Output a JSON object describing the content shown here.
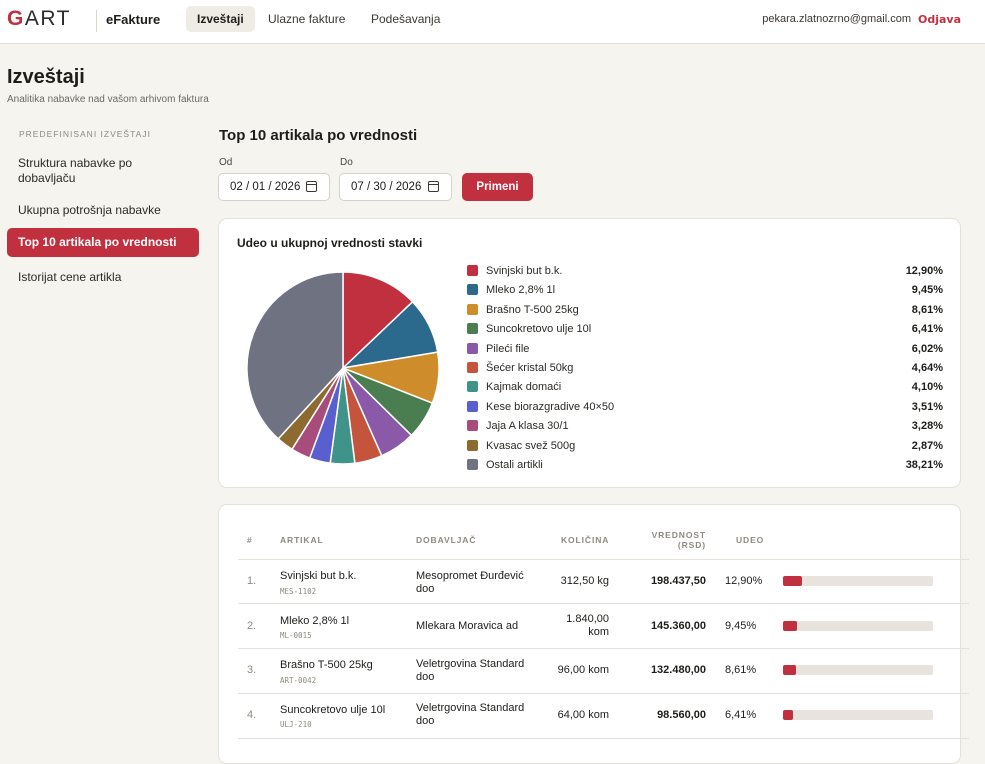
{
  "header": {
    "logo_first": "G",
    "logo_rest": "ART",
    "app_name": "eFakture",
    "nav": [
      {
        "label": "Izveštaji",
        "active": true
      },
      {
        "label": "Ulazne fakture",
        "active": false
      },
      {
        "label": "Podešavanja",
        "active": false
      }
    ],
    "user_email": "pekara.zlatnozrno@gmail.com",
    "logout_label": "Odjava"
  },
  "page": {
    "title": "Izveštaji",
    "subtitle": "Analitika nabavke nad vašom arhivom faktura"
  },
  "sidebar": {
    "heading": "PREDEFINISANI IZVEŠTAJI",
    "items": [
      {
        "label": "Struktura nabavke po dobavljaču",
        "active": false
      },
      {
        "label": "Ukupna potrošnja nabavke",
        "active": false
      },
      {
        "label": "Top 10 artikala po vrednosti",
        "active": true
      },
      {
        "label": "Istorijat cene artikla",
        "active": false
      }
    ]
  },
  "report": {
    "title": "Top 10 artikala po vrednosti",
    "from_label": "Od",
    "from_value": "02 / 01 / 2026",
    "to_label": "Do",
    "to_value": "07 / 30 / 2026",
    "apply_label": "Primeni"
  },
  "chart_card": {
    "title": "Udeo u ukupnoj vrednosti stavki"
  },
  "chart_data": {
    "type": "pie",
    "title": "Udeo u ukupnoj vrednosti stavki",
    "labels": [
      "Svinjski but b.k.",
      "Mleko 2,8% 1l",
      "Brašno T-500 25kg",
      "Suncokretovo ulje 10l",
      "Pileći file",
      "Šećer kristal 50kg",
      "Kajmak domaći",
      "Kese biorazgradive 40×50",
      "Jaja A klasa 30/1",
      "Kvasac svež 500g",
      "Ostali artikli"
    ],
    "values": [
      12.9,
      9.45,
      8.61,
      6.41,
      6.02,
      4.64,
      4.1,
      3.51,
      3.28,
      2.87,
      38.21
    ],
    "value_labels": [
      "12,90%",
      "9,45%",
      "8,61%",
      "6,41%",
      "6,02%",
      "4,64%",
      "4,10%",
      "3,51%",
      "3,28%",
      "2,87%",
      "38,21%"
    ],
    "colors": [
      "#c1303f",
      "#2b6a8c",
      "#cf8c2a",
      "#4a7d4f",
      "#8a5aa8",
      "#c4543c",
      "#3f9389",
      "#5a5fcf",
      "#a84c7c",
      "#8c6a30",
      "#6f7280"
    ],
    "legend_position": "right"
  },
  "table": {
    "headers": {
      "num": "#",
      "article": "ARTIKAL",
      "supplier": "DOBAVLJAČ",
      "qty": "KOLIČINA",
      "value_line1": "VREDNOST",
      "value_line2": "(RSD)",
      "share": "UDEO"
    },
    "rows": [
      {
        "num": "1.",
        "article": "Svinjski but b.k.",
        "code": "MES-1102",
        "supplier_line1": "Mesopromet Đurđević",
        "supplier_line2": "doo",
        "qty_line1": "312,50 kg",
        "qty_line2": "",
        "value": "198.437,50",
        "share": "12,90%",
        "share_value": 12.9
      },
      {
        "num": "2.",
        "article": "Mleko 2,8% 1l",
        "code": "ML-0015",
        "supplier_line1": "Mlekara Moravica ad",
        "supplier_line2": "",
        "qty_line1": "1.840,00",
        "qty_line2": "kom",
        "value": "145.360,00",
        "share": "9,45%",
        "share_value": 9.45
      },
      {
        "num": "3.",
        "article": "Brašno T-500 25kg",
        "code": "ART-0042",
        "supplier_line1": "Veletrgovina Standard",
        "supplier_line2": "doo",
        "qty_line1": "96,00 kom",
        "qty_line2": "",
        "value": "132.480,00",
        "share": "8,61%",
        "share_value": 8.61
      },
      {
        "num": "4.",
        "article": "Suncokretovo ulje 10l",
        "code": "ULJ-210",
        "supplier_line1": "Veletrgovina Standard",
        "supplier_line2": "doo",
        "qty_line1": "64,00 kom",
        "qty_line2": "",
        "value": "98.560,00",
        "share": "6,41%",
        "share_value": 6.41
      }
    ]
  }
}
